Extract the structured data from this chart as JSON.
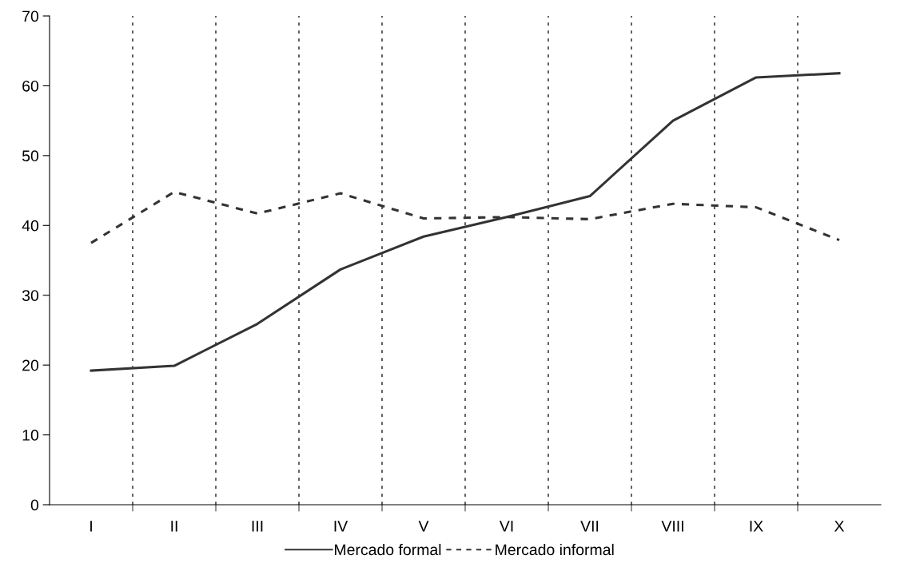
{
  "chart_data": {
    "type": "line",
    "categories": [
      "I",
      "II",
      "III",
      "IV",
      "V",
      "VI",
      "VII",
      "VIII",
      "IX",
      "X"
    ],
    "series": [
      {
        "name": "Mercado formal",
        "color": "#333333",
        "line_style": "solid",
        "values": [
          19.2,
          19.9,
          25.9,
          33.7,
          38.4,
          41.2,
          44.2,
          55.0,
          61.2,
          61.8
        ]
      },
      {
        "name": "Mercado informal",
        "color": "#333333",
        "line_style": "dotted",
        "values": [
          37.5,
          44.8,
          41.7,
          44.6,
          41.0,
          41.2,
          40.9,
          43.1,
          42.6,
          37.9
        ]
      }
    ],
    "ylim": [
      0,
      70
    ],
    "yticks": [
      0,
      10,
      20,
      30,
      40,
      50,
      60,
      70
    ],
    "grid": "x",
    "legend": "bottom",
    "marker": "none"
  }
}
